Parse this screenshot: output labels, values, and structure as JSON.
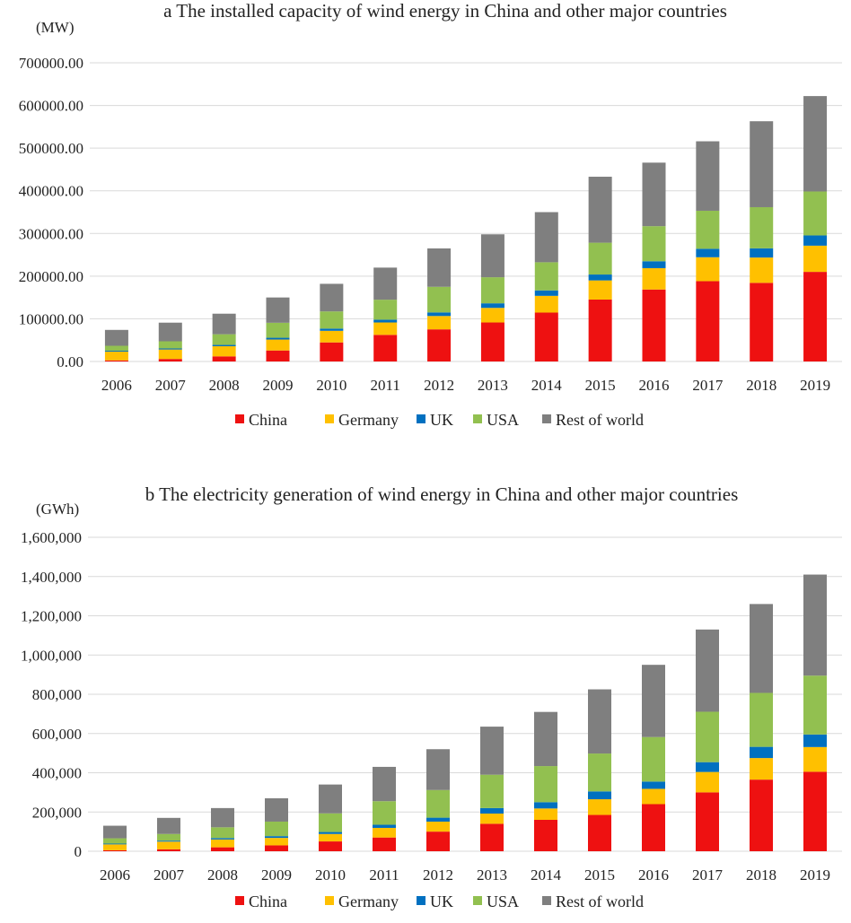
{
  "colors": {
    "China": "#ee1111",
    "Germany": "#ffc000",
    "UK": "#0070c0",
    "USA": "#92c050",
    "Rest of world": "#7f7f7f",
    "grid": "#d9d9d9"
  },
  "chart_data": [
    {
      "type": "bar",
      "stacked": true,
      "title": "a The installed capacity of wind energy in China and other major countries",
      "ylabel": "(MW)",
      "ylim": [
        0,
        700000
      ],
      "yticks": [
        "0.00",
        "100000.00",
        "200000.00",
        "300000.00",
        "400000.00",
        "500000.00",
        "600000.00",
        "700000.00"
      ],
      "categories": [
        "2006",
        "2007",
        "2008",
        "2009",
        "2010",
        "2011",
        "2012",
        "2013",
        "2014",
        "2015",
        "2016",
        "2017",
        "2018",
        "2019"
      ],
      "legend_position": "bottom",
      "series": [
        {
          "name": "China",
          "values": [
            2600,
            5900,
            12000,
            25800,
            44700,
            62400,
            75300,
            91400,
            114600,
            145100,
            168700,
            188200,
            184300,
            210000
          ]
        },
        {
          "name": "Germany",
          "values": [
            20600,
            22200,
            23800,
            25600,
            27200,
            29000,
            31300,
            34200,
            39200,
            44900,
            50000,
            56100,
            59300,
            61400
          ]
        },
        {
          "name": "UK",
          "values": [
            2000,
            2400,
            3000,
            4200,
            5200,
            6500,
            8400,
            10700,
            12800,
            13800,
            16200,
            19800,
            21600,
            24000
          ]
        },
        {
          "name": "USA",
          "values": [
            11600,
            16800,
            25000,
            35100,
            40200,
            46900,
            60000,
            61100,
            65900,
            74500,
            82200,
            89100,
            96400,
            103000
          ]
        },
        {
          "name": "Rest of world",
          "values": [
            37200,
            43700,
            48200,
            59300,
            64700,
            75200,
            90000,
            100600,
            117500,
            154700,
            148900,
            162800,
            201400,
            223600
          ]
        }
      ]
    },
    {
      "type": "bar",
      "stacked": true,
      "title": "b The electricity  generation of wind energy in China and other major countries",
      "ylabel": "(GWh)",
      "ylim": [
        0,
        1600000
      ],
      "yticks": [
        "0",
        "200,000",
        "400,000",
        "600,000",
        "800,000",
        "1,000,000",
        "1,200,000",
        "1,400,000",
        "1,600,000"
      ],
      "categories": [
        "2006",
        "2007",
        "2008",
        "2009",
        "2010",
        "2011",
        "2012",
        "2013",
        "2014",
        "2015",
        "2016",
        "2017",
        "2018",
        "2019"
      ],
      "legend_position": "bottom",
      "series": [
        {
          "name": "China",
          "values": [
            5000,
            10000,
            20000,
            30000,
            50000,
            70000,
            100000,
            140000,
            160000,
            185000,
            240000,
            300000,
            365000,
            405000
          ]
        },
        {
          "name": "Germany",
          "values": [
            30000,
            39000,
            40000,
            38000,
            38000,
            49000,
            51000,
            52000,
            58000,
            80000,
            78000,
            104000,
            110000,
            126000
          ]
        },
        {
          "name": "UK",
          "values": [
            4000,
            5000,
            7000,
            9000,
            10000,
            16000,
            20000,
            28000,
            32000,
            40000,
            37000,
            50000,
            57000,
            64000
          ]
        },
        {
          "name": "USA",
          "values": [
            27000,
            34000,
            55000,
            74000,
            95000,
            120000,
            141000,
            170000,
            184000,
            193000,
            227000,
            257000,
            275000,
            300000
          ]
        },
        {
          "name": "Rest of world",
          "values": [
            64000,
            82000,
            98000,
            119000,
            147000,
            175000,
            208000,
            245000,
            276000,
            327000,
            368000,
            419000,
            453000,
            515000
          ]
        }
      ]
    }
  ]
}
